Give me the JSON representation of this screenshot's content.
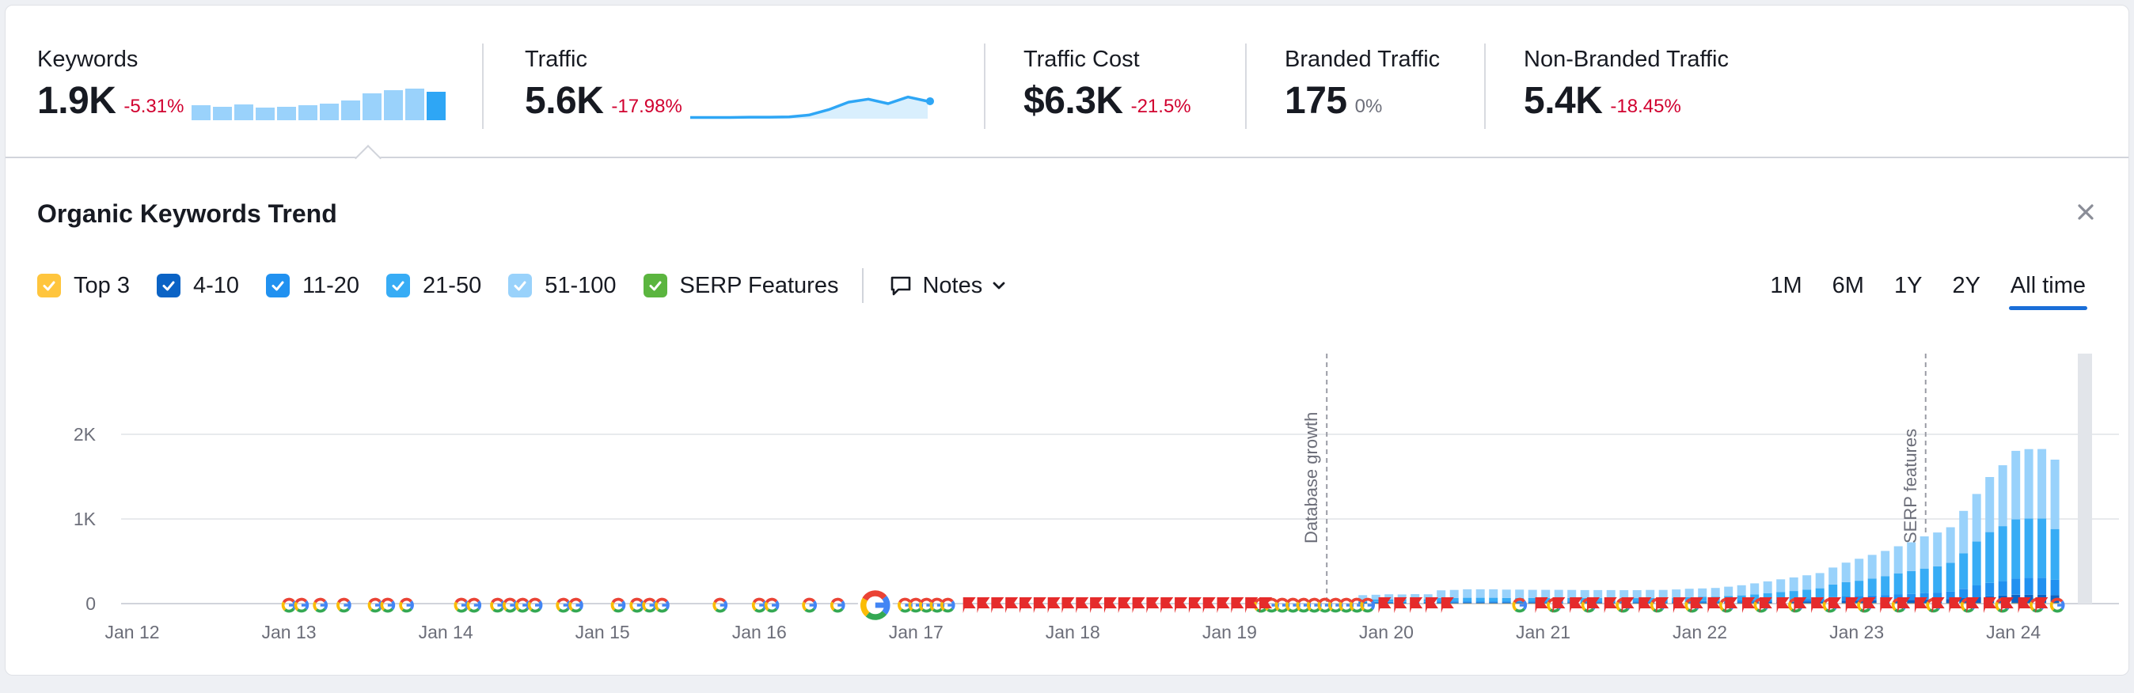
{
  "metrics": [
    {
      "label": "Keywords",
      "value": "1.9K",
      "delta": "-5.31%",
      "delta_type": "negative"
    },
    {
      "label": "Traffic",
      "value": "5.6K",
      "delta": "-17.98%",
      "delta_type": "negative"
    },
    {
      "label": "Traffic Cost",
      "value": "$6.3K",
      "delta": "-21.5%",
      "delta_type": "negative"
    },
    {
      "label": "Branded Traffic",
      "value": "175",
      "delta": "0%",
      "delta_type": "neutral"
    },
    {
      "label": "Non-Branded Traffic",
      "value": "5.4K",
      "delta": "-18.45%",
      "delta_type": "negative"
    }
  ],
  "keywords_sparkline": [
    0.3,
    0.28,
    0.32,
    0.26,
    0.28,
    0.3,
    0.34,
    0.4,
    0.55,
    0.62,
    0.64,
    0.58
  ],
  "traffic_sparkline": [
    0.04,
    0.04,
    0.04,
    0.05,
    0.05,
    0.06,
    0.12,
    0.3,
    0.55,
    0.65,
    0.5,
    0.72,
    0.58
  ],
  "panel": {
    "title": "Organic Keywords Trend",
    "close_icon": "close-icon",
    "legend": [
      {
        "label": "Top 3",
        "color": "#ffc53d",
        "checked": true
      },
      {
        "label": "4-10",
        "color": "#0b63c5",
        "checked": true
      },
      {
        "label": "11-20",
        "color": "#2191f0",
        "checked": true
      },
      {
        "label": "21-50",
        "color": "#37acf5",
        "checked": true
      },
      {
        "label": "51-100",
        "color": "#99d2fb",
        "checked": true
      },
      {
        "label": "SERP Features",
        "color": "#5bb53f",
        "checked": true
      }
    ],
    "notes_label": "Notes",
    "periods": [
      "1M",
      "6M",
      "1Y",
      "2Y",
      "All time"
    ],
    "active_period": "All time"
  },
  "chart_data": {
    "type": "bar",
    "stacked": true,
    "title": "Organic Keywords Trend",
    "ylim": [
      0,
      2200
    ],
    "y_ticks": [
      0,
      1000,
      2000
    ],
    "y_tick_labels": [
      "0",
      "1K",
      "2K"
    ],
    "x_ticks": [
      "Jan 12",
      "Jan 13",
      "Jan 14",
      "Jan 15",
      "Jan 16",
      "Jan 17",
      "Jan 18",
      "Jan 19",
      "Jan 20",
      "Jan 21",
      "Jan 22",
      "Jan 23",
      "Jan 24"
    ],
    "x_range": [
      2012.0,
      2024.35
    ],
    "grid": true,
    "annotations": [
      {
        "label": "Database growth",
        "x": 2019.62
      },
      {
        "label": "SERP features",
        "x": 2023.44
      }
    ],
    "bar_x_start": 2019.85,
    "bar_step": 0.0833,
    "series": [
      {
        "name": "Top 3",
        "color": "#ffc53d",
        "values": [
          2,
          2,
          2,
          2,
          2,
          2,
          3,
          3,
          3,
          3,
          3,
          3,
          3,
          3,
          3,
          3,
          3,
          3,
          3,
          3,
          3,
          3,
          3,
          3,
          3,
          3,
          3,
          3,
          3,
          3,
          3,
          3,
          3,
          3,
          3,
          3,
          4,
          4,
          4,
          4,
          4,
          4,
          4,
          4,
          4,
          4,
          5,
          5,
          5,
          5,
          5,
          5,
          6,
          6
        ]
      },
      {
        "name": "4-10",
        "color": "#0b63c5",
        "values": [
          8,
          8,
          8,
          8,
          8,
          8,
          10,
          10,
          10,
          10,
          10,
          10,
          10,
          10,
          10,
          10,
          10,
          10,
          10,
          10,
          10,
          10,
          10,
          10,
          10,
          12,
          12,
          12,
          14,
          14,
          14,
          16,
          18,
          18,
          20,
          22,
          28,
          30,
          32,
          34,
          36,
          38,
          40,
          44,
          46,
          50,
          60,
          70,
          80,
          90,
          100,
          100,
          100,
          95
        ]
      },
      {
        "name": "11-20",
        "color": "#2191f0",
        "values": [
          10,
          10,
          10,
          10,
          10,
          10,
          14,
          14,
          14,
          14,
          14,
          14,
          14,
          14,
          14,
          14,
          14,
          14,
          14,
          14,
          14,
          14,
          14,
          14,
          14,
          16,
          16,
          16,
          18,
          20,
          22,
          24,
          26,
          28,
          32,
          36,
          44,
          50,
          54,
          58,
          62,
          66,
          70,
          76,
          80,
          88,
          110,
          140,
          160,
          170,
          190,
          200,
          200,
          180
        ]
      },
      {
        "name": "21-50",
        "color": "#37acf5",
        "values": [
          30,
          30,
          30,
          30,
          30,
          30,
          40,
          40,
          42,
          42,
          42,
          40,
          40,
          40,
          40,
          40,
          40,
          38,
          38,
          38,
          38,
          38,
          40,
          40,
          42,
          45,
          48,
          50,
          55,
          60,
          70,
          80,
          90,
          100,
          110,
          120,
          150,
          170,
          180,
          200,
          220,
          250,
          270,
          290,
          310,
          340,
          420,
          520,
          600,
          650,
          700,
          700,
          700,
          600
        ]
      },
      {
        "name": "51-100",
        "color": "#99d2fb",
        "values": [
          50,
          55,
          60,
          58,
          62,
          60,
          90,
          95,
          100,
          100,
          100,
          98,
          98,
          96,
          96,
          96,
          95,
          95,
          95,
          95,
          94,
          94,
          95,
          95,
          98,
          100,
          100,
          104,
          110,
          120,
          130,
          140,
          150,
          160,
          170,
          180,
          200,
          230,
          260,
          280,
          300,
          320,
          340,
          380,
          400,
          420,
          500,
          560,
          650,
          720,
          810,
          820,
          820,
          820
        ]
      }
    ],
    "serp_feature_markers": "G icons along baseline (organic search history timeline)"
  }
}
